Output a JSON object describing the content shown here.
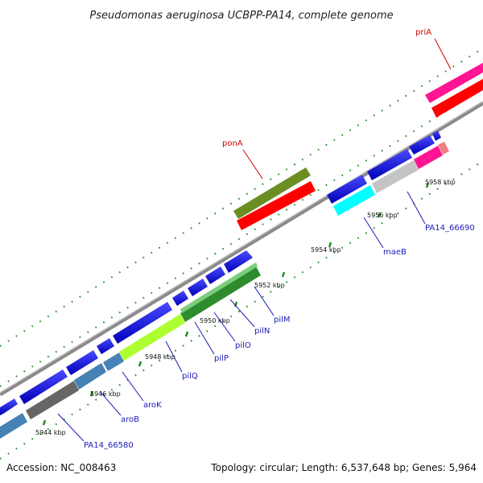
{
  "title": "Pseudomonas aeruginosa UCBPP-PA14, complete genome",
  "footer": {
    "accession": "Accession: NC_008463",
    "summary": "Topology: circular; Length: 6,537,648 bp; Genes: 5,964"
  },
  "colors": {
    "background": "#ffffff",
    "backbone": "#8a8a8a",
    "tick": "#1a8a1a",
    "label_red": "#d10000",
    "label_blue": "#1a1ab8",
    "gene_blue": "#0a0ae6",
    "rrna_red": "#ff0000",
    "olive": "#6b8e23",
    "magenta": "#ff1493",
    "gray": "#c4c4c4",
    "cyan": "#00ffff",
    "lime": "#adff2f",
    "green": "#32a832",
    "steel": "#4682b4",
    "dark_gray": "#555555",
    "pink": "#f08080"
  },
  "kbp_labels": [
    "5944 kbp",
    "5946 kbp",
    "5948 kbp",
    "5950 kbp",
    "5952 kbp",
    "5954 kbp",
    "5956 kbp",
    "5958 kbp"
  ],
  "gene_labels": {
    "priA": "priA",
    "ponA": "ponA",
    "PA14_66690": "PA14_66690",
    "maeB": "maeB",
    "pilM": "pilM",
    "pilN": "pilN",
    "pilO": "pilO",
    "pilP": "pilP",
    "pilQ": "pilQ",
    "aroK": "aroK",
    "aroB": "aroB",
    "PA14_66580": "PA14_66580"
  }
}
